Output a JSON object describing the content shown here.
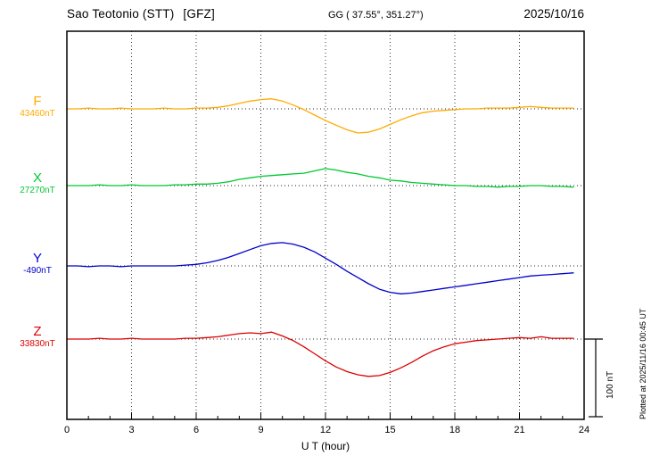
{
  "header": {
    "station": "Sao Teotonio (STT)",
    "agency": "[GFZ]",
    "coords": "GG ( 37.55°, 351.27°)",
    "date": "2025/10/16"
  },
  "axes": {
    "xlabel": "U T (hour)",
    "x_max": 24,
    "xticks": [
      0,
      3,
      6,
      9,
      12,
      15,
      18,
      21,
      24
    ]
  },
  "scale_bar": {
    "label": "100 nT",
    "nT": 100
  },
  "plotted_note": "Plotted at 2025/11/16 00:45 UT",
  "chart_data": {
    "type": "line",
    "title": "Sao Teotonio (STT) [GFZ] magnetogram 2025/10/16",
    "xlabel": "U T (hour)",
    "x_range": [
      0,
      24
    ],
    "x_start": 0,
    "x_step": 0.5,
    "grid": "dotted vertical lines every 3 h; dotted horizontal baseline per component",
    "legend_position": "left margin",
    "series": [
      {
        "name": "F",
        "baseline_value": "43460nT",
        "color": "#FFAA00",
        "values": [
          0,
          0,
          1,
          0,
          0,
          1,
          0,
          0,
          0,
          1,
          0,
          0,
          1,
          1,
          2,
          4,
          7,
          10,
          12,
          13,
          10,
          5,
          -1,
          -8,
          -15,
          -21,
          -27,
          -31,
          -30,
          -26,
          -20,
          -14,
          -9,
          -5,
          -3,
          -2,
          -1,
          0,
          0,
          1,
          1,
          1,
          2,
          3,
          2,
          1,
          1,
          1
        ]
      },
      {
        "name": "X",
        "baseline_value": "27270nT",
        "color": "#00C832",
        "values": [
          0,
          0,
          0,
          1,
          0,
          0,
          1,
          0,
          0,
          0,
          1,
          1,
          2,
          2,
          3,
          5,
          8,
          10,
          12,
          13,
          14,
          15,
          16,
          19,
          22,
          20,
          17,
          15,
          12,
          10,
          7,
          6,
          4,
          3,
          2,
          1,
          0,
          0,
          -1,
          -1,
          -2,
          -1,
          -1,
          0,
          0,
          -1,
          -1,
          -2
        ]
      },
      {
        "name": "Y",
        "baseline_value": "-490nT",
        "color": "#0000CC",
        "values": [
          0,
          0,
          -1,
          0,
          0,
          -1,
          0,
          0,
          0,
          0,
          0,
          1,
          2,
          4,
          7,
          11,
          16,
          21,
          26,
          29,
          30,
          28,
          24,
          18,
          10,
          2,
          -7,
          -15,
          -23,
          -30,
          -34,
          -36,
          -35,
          -33,
          -31,
          -29,
          -27,
          -25,
          -23,
          -21,
          -19,
          -17,
          -15,
          -13,
          -12,
          -11,
          -10,
          -9
        ]
      },
      {
        "name": "Z",
        "baseline_value": "33830nT",
        "color": "#DD0000",
        "values": [
          0,
          0,
          0,
          1,
          0,
          0,
          1,
          0,
          0,
          0,
          0,
          1,
          1,
          2,
          3,
          5,
          7,
          8,
          7,
          9,
          4,
          -2,
          -10,
          -19,
          -28,
          -36,
          -42,
          -46,
          -48,
          -47,
          -43,
          -37,
          -30,
          -22,
          -15,
          -10,
          -6,
          -4,
          -2,
          -1,
          0,
          1,
          2,
          1,
          3,
          1,
          1,
          1
        ]
      }
    ]
  }
}
